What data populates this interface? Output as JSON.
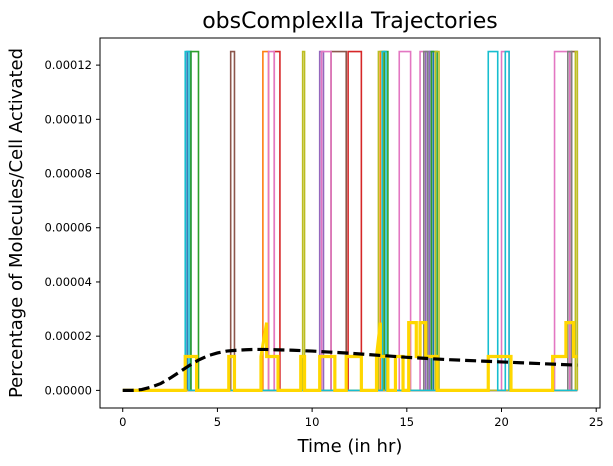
{
  "chart_data": {
    "type": "line",
    "title": "obsComplexIIa Trajectories",
    "xlabel": "Time (in hr)",
    "ylabel": "Percentage of Molecules/Cell Activated",
    "xlim": [
      -1.2,
      25.2
    ],
    "ylim": [
      -6.5e-06,
      0.00013
    ],
    "x_ticks": [
      0,
      5,
      10,
      15,
      20,
      25
    ],
    "x_tick_labels": [
      "0",
      "5",
      "10",
      "15",
      "20",
      "25"
    ],
    "y_ticks": [
      0,
      2e-05,
      4e-05,
      6e-05,
      8e-05,
      0.0001,
      0.00012
    ],
    "y_tick_labels": [
      "0.00000",
      "0.00002",
      "0.00004",
      "0.00006",
      "0.00008",
      "0.00010",
      "0.00012"
    ],
    "grid": false,
    "legend": "none",
    "pulse_height": 0.000125,
    "series": [
      {
        "color": "#1f77b4",
        "pulses": [
          [
            3.4,
            3.6
          ],
          [
            16.2,
            16.4
          ]
        ]
      },
      {
        "color": "#ff7f0e",
        "pulses": [
          [
            7.4,
            7.7
          ],
          [
            13.6,
            13.8
          ]
        ]
      },
      {
        "color": "#2ca02c",
        "pulses": [
          [
            3.6,
            4.0
          ],
          [
            13.8,
            14.0
          ],
          [
            16.3,
            16.6
          ]
        ]
      },
      {
        "color": "#d62728",
        "pulses": [
          [
            8.0,
            8.3
          ],
          [
            11.9,
            12.6
          ]
        ]
      },
      {
        "color": "#9467bd",
        "pulses": [
          [
            10.4,
            10.6
          ],
          [
            16.0,
            16.2
          ]
        ]
      },
      {
        "color": "#8c564b",
        "pulses": [
          [
            5.7,
            5.9
          ],
          [
            11.0,
            11.8
          ],
          [
            23.7,
            24.0
          ]
        ]
      },
      {
        "color": "#e377c2",
        "pulses": [
          [
            7.7,
            8.0
          ],
          [
            10.5,
            11.0
          ],
          [
            14.6,
            15.2
          ],
          [
            15.7,
            15.9
          ],
          [
            20.0,
            20.4
          ],
          [
            22.8,
            23.6
          ]
        ]
      },
      {
        "color": "#7f7f7f",
        "pulses": [
          [
            15.9,
            16.1
          ],
          [
            23.5,
            23.7
          ]
        ]
      },
      {
        "color": "#bcbd22",
        "pulses": [
          [
            9.5,
            9.6
          ],
          [
            13.5,
            13.7
          ],
          [
            16.5,
            16.7
          ],
          [
            23.9,
            24.0
          ]
        ]
      },
      {
        "color": "#17becf",
        "pulses": [
          [
            3.3,
            3.5
          ],
          [
            13.7,
            13.9
          ],
          [
            19.3,
            19.8
          ],
          [
            20.2,
            20.4
          ]
        ]
      }
    ],
    "gold_series": {
      "color": "#ffd700",
      "x": [
        0,
        3.3,
        3.3,
        3.9,
        3.9,
        5.6,
        5.6,
        5.9,
        5.9,
        7.3,
        7.3,
        7.6,
        7.6,
        8.2,
        8.2,
        9.4,
        9.4,
        9.6,
        9.6,
        10.4,
        10.4,
        11.2,
        11.2,
        11.8,
        11.8,
        12.6,
        12.6,
        13.4,
        13.4,
        13.6,
        13.6,
        14.0,
        14.0,
        14.4,
        14.4,
        14.8,
        14.8,
        15.1,
        15.1,
        15.5,
        15.5,
        15.7,
        15.7,
        16.0,
        16.0,
        16.6,
        16.6,
        19.3,
        19.3,
        20.5,
        20.5,
        22.7,
        22.7,
        23.4,
        23.4,
        23.8,
        23.8,
        24.0
      ],
      "y": [
        0,
        0,
        1.25e-05,
        1.25e-05,
        0,
        0,
        1.25e-05,
        1.25e-05,
        0,
        0,
        1.25e-05,
        2.5e-05,
        1.25e-05,
        1.25e-05,
        0,
        0,
        1.25e-05,
        1.25e-05,
        0,
        0,
        1.25e-05,
        1.25e-05,
        0,
        0,
        1.25e-05,
        1.25e-05,
        0,
        0,
        1.25e-05,
        2.5e-05,
        1.25e-05,
        1.25e-05,
        0,
        0,
        1.25e-05,
        1.25e-05,
        0,
        0,
        2.5e-05,
        2.5e-05,
        1.25e-05,
        1.25e-05,
        2.5e-05,
        2.5e-05,
        1.25e-05,
        1.25e-05,
        0,
        0,
        1.25e-05,
        1.25e-05,
        0,
        0,
        1.25e-05,
        1.25e-05,
        2.5e-05,
        2.5e-05,
        1.25e-05,
        1.25e-05
      ]
    },
    "mean_series": {
      "color": "#000000",
      "style": "dashed",
      "x": [
        0,
        0.5,
        1,
        1.5,
        2,
        2.5,
        3,
        3.5,
        4,
        4.5,
        5,
        5.5,
        6,
        6.5,
        7,
        7.5,
        8,
        9,
        10,
        11,
        12,
        13,
        14,
        15,
        16,
        17,
        18,
        19,
        20,
        21,
        22,
        23,
        24
      ],
      "y": [
        0,
        0,
        3e-07,
        1.2e-06,
        2.5e-06,
        4.5e-06,
        6.8e-06,
        9.1e-06,
        1.12e-05,
        1.28e-05,
        1.38e-05,
        1.45e-05,
        1.48e-05,
        1.5e-05,
        1.51e-05,
        1.51e-05,
        1.5e-05,
        1.48e-05,
        1.45e-05,
        1.41e-05,
        1.37e-05,
        1.32e-05,
        1.27e-05,
        1.22e-05,
        1.18e-05,
        1.14e-05,
        1.11e-05,
        1.08e-05,
        1.05e-05,
        1.02e-05,
        9.9e-06,
        9.6e-06,
        9.3e-06
      ]
    }
  }
}
